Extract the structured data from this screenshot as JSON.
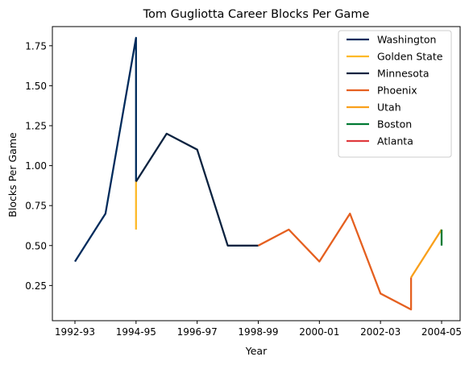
{
  "chart_data": {
    "type": "line",
    "title": "Tom Gugliotta Career Blocks Per Game",
    "xlabel": "Year",
    "ylabel": "Blocks Per Game",
    "x_categories": [
      "1992-93",
      "1993-94",
      "1994-95",
      "1995-96",
      "1996-97",
      "1997-98",
      "1998-99",
      "1999-00",
      "2000-01",
      "2001-02",
      "2002-03",
      "2003-04",
      "2004-05"
    ],
    "x_ticks": [
      "1992-93",
      "1994-95",
      "1996-97",
      "1998-99",
      "2000-01",
      "2002-03",
      "2004-05"
    ],
    "y_ticks": [
      "0.25",
      "0.50",
      "0.75",
      "1.00",
      "1.25",
      "1.50",
      "1.75"
    ],
    "ylim": [
      0.03,
      1.87
    ],
    "grid": false,
    "legend_position": "top-right",
    "series": [
      {
        "name": "Washington",
        "color": "#002b5c",
        "points": [
          [
            "1992-93",
            0.4
          ],
          [
            "1993-94",
            0.7
          ],
          [
            "1994-95",
            1.8
          ],
          [
            "1994-95",
            0.9
          ]
        ]
      },
      {
        "name": "Golden State",
        "color": "#fdb927",
        "points": [
          [
            "1994-95",
            0.9
          ],
          [
            "1994-95",
            0.6
          ]
        ]
      },
      {
        "name": "Minnesota",
        "color": "#0c2340",
        "points": [
          [
            "1994-95",
            0.9
          ],
          [
            "1995-96",
            1.2
          ],
          [
            "1996-97",
            1.1
          ],
          [
            "1997-98",
            0.5
          ],
          [
            "1998-99",
            0.5
          ]
        ]
      },
      {
        "name": "Phoenix",
        "color": "#e56020",
        "points": [
          [
            "1998-99",
            0.5
          ],
          [
            "1999-00",
            0.6
          ],
          [
            "2000-01",
            0.4
          ],
          [
            "2001-02",
            0.7
          ],
          [
            "2002-03",
            0.2
          ],
          [
            "2003-04",
            0.1
          ],
          [
            "2003-04",
            0.3
          ]
        ]
      },
      {
        "name": "Utah",
        "color": "#f9a01b",
        "points": [
          [
            "2003-04",
            0.3
          ],
          [
            "2004-05",
            0.6
          ]
        ]
      },
      {
        "name": "Boston",
        "color": "#007a33",
        "points": [
          [
            "2004-05",
            0.6
          ],
          [
            "2004-05",
            0.5
          ]
        ]
      },
      {
        "name": "Atlanta",
        "color": "#e03a3e",
        "points": []
      }
    ]
  }
}
